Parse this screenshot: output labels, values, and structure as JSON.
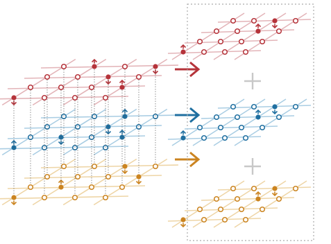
{
  "colors": {
    "red": "#b5333a",
    "red_light": "#e3b4b8",
    "blue": "#1f6fa0",
    "blue_light": "#a9cde3",
    "orange": "#cb8420",
    "orange_light": "#eed5a6",
    "frame": "#aaaaaa",
    "plus": "#c8c8c8",
    "guide": "#444444"
  },
  "cube": {
    "layers": [
      {
        "name": "top-layer",
        "color": "red"
      },
      {
        "name": "middle-layer",
        "color": "blue"
      },
      {
        "name": "bottom-layer",
        "color": "orange"
      }
    ]
  },
  "decomposition": {
    "planes": [
      {
        "name": "red-plane",
        "color": "red"
      },
      {
        "name": "blue-plane",
        "color": "blue"
      },
      {
        "name": "orange-plane",
        "color": "orange"
      }
    ],
    "arrows": [
      {
        "name": "arrow-to-red-plane",
        "color": "red"
      },
      {
        "name": "arrow-to-blue-plane",
        "color": "blue"
      },
      {
        "name": "arrow-to-orange-plane",
        "color": "orange"
      }
    ],
    "operators": [
      "plus",
      "plus"
    ]
  }
}
